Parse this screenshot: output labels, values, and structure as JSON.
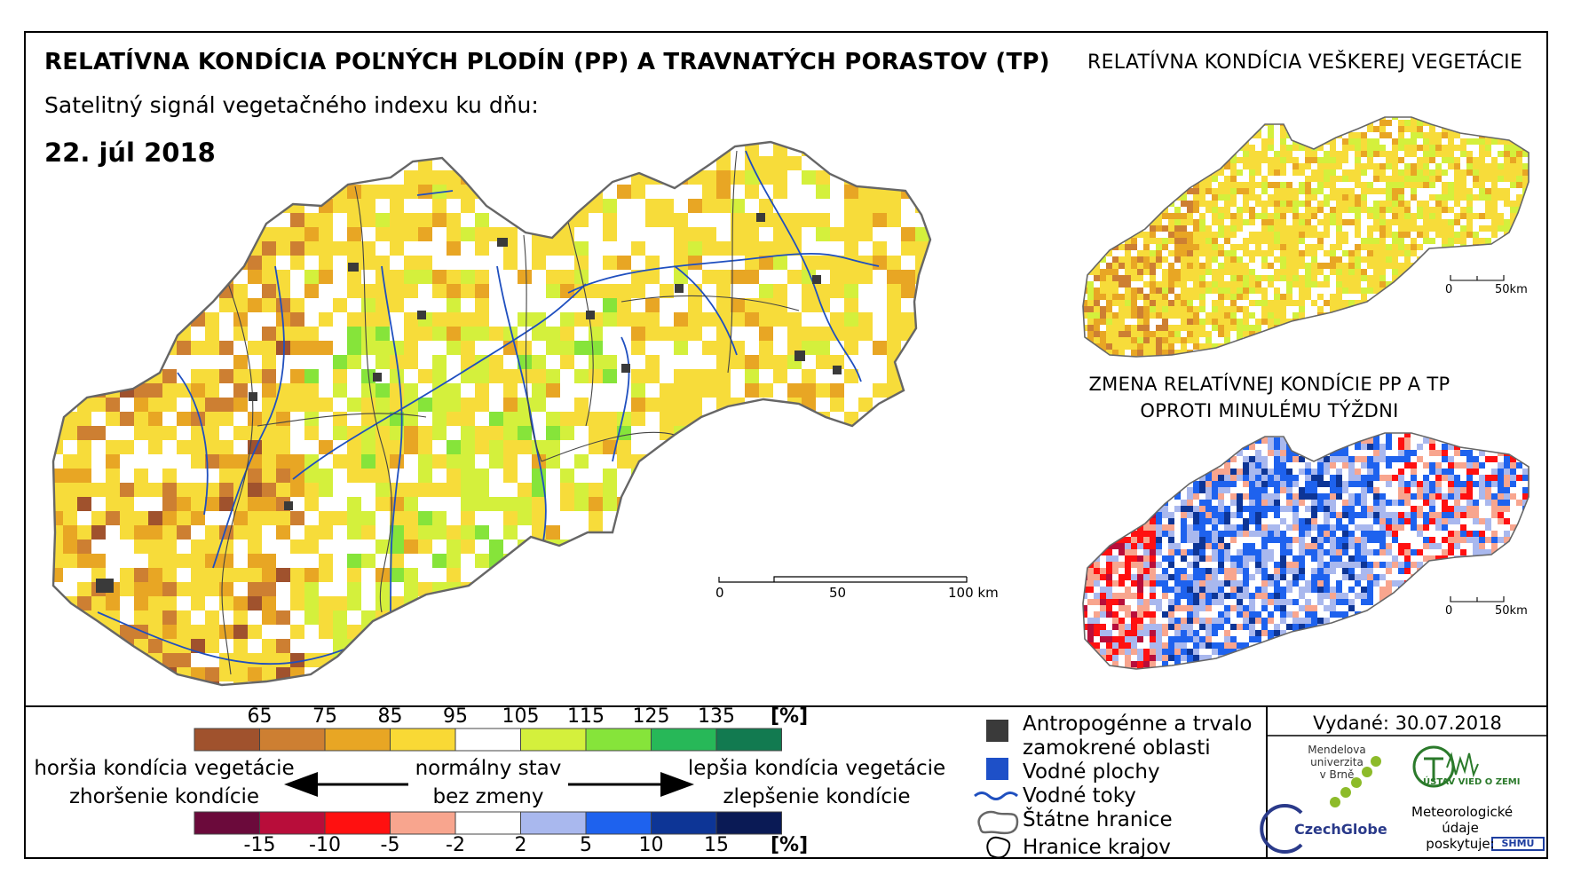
{
  "header": {
    "title": "RELATÍVNA KONDÍCIA POĽNÝCH PLODÍN (PP) A TRAVNATÝCH PORASTOV (TP)",
    "subtitle": "Satelitný signál vegetačného indexu ku dňu:",
    "date": "22. júl 2018"
  },
  "inset_top": {
    "title": "RELATÍVNA KONDÍCIA VEŠKEREJ VEGETÁCIE",
    "scale": [
      "0",
      "50km"
    ]
  },
  "inset_bottom": {
    "title_line1": "ZMENA RELATÍVNEJ KONDÍCIE PP A TP",
    "title_line2": "OPROTI MINULÉMU TÝŽDNI",
    "scale": [
      "0",
      "50km"
    ]
  },
  "main_map": {
    "scale": [
      "0",
      "50",
      "100 km"
    ]
  },
  "legend": {
    "condition_ticks": [
      "65",
      "75",
      "85",
      "95",
      "105",
      "115",
      "125",
      "135"
    ],
    "condition_unit": "[%]",
    "condition_colors": [
      "#a0522d",
      "#cd7f32",
      "#e8a624",
      "#f9d935",
      "#ffffff",
      "#d4f03c",
      "#86e43a",
      "#27b858",
      "#127a50"
    ],
    "change_ticks": [
      "-15",
      "-10",
      "-5",
      "-2",
      "2",
      "5",
      "10",
      "15"
    ],
    "change_unit": "[%]",
    "change_colors": [
      "#6b0a3b",
      "#b80d3a",
      "#ff1010",
      "#f8a58e",
      "#ffffff",
      "#a9b8ee",
      "#1e62ee",
      "#0d3596",
      "#0a1a55"
    ],
    "worse_cond": "horšia kondícia vegetácie",
    "worse_change": "zhoršenie kondície",
    "normal_state": "normálny stav",
    "no_change": "bez zmeny",
    "better_cond": "lepšia kondícia vegetácie",
    "better_change": "zlepšenie kondície"
  },
  "symbols": {
    "anthro_line1": "Antropogénne a trvalo",
    "anthro_line2": "zamokrené oblasti",
    "water_bodies": "Vodné plochy",
    "rivers": "Vodné toky",
    "borders": "Štátne hranice",
    "regions": "Hranice krajov"
  },
  "footer": {
    "issued": "Vydané: 30.07.2018",
    "mendel_line1": "Mendelova",
    "mendel_line2": "univerzita",
    "mendel_line3": "v Brně",
    "czechglobe": "CzechGlobe",
    "ustav": "ÚSTAV VIED O ZEMI",
    "meteo_line1": "Meteorologické",
    "meteo_line2": "údaje",
    "meteo_line3": "poskytuje:",
    "shmu": "SHMU"
  }
}
